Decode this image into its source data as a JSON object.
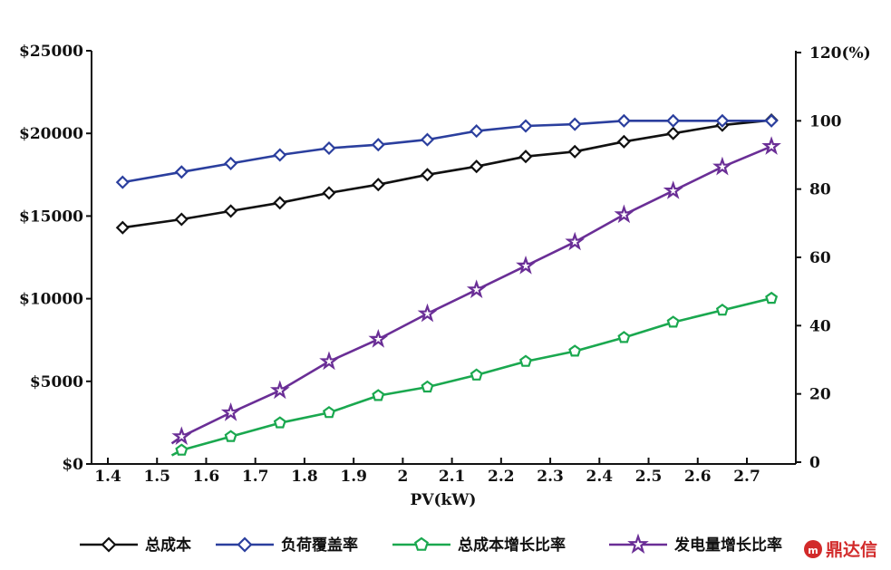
{
  "chart_data": {
    "type": "line",
    "title": "",
    "xlabel": "PV(kW)",
    "x_ticks": [
      "1.4",
      "1.5",
      "1.6",
      "1.7",
      "1.8",
      "1.9",
      "2",
      "2.1",
      "2.2",
      "2.3",
      "2.4",
      "2.5",
      "2.6",
      "2.7"
    ],
    "xlim": [
      1.4,
      2.78
    ],
    "y_left": {
      "ticks": [
        "$25000",
        "$20000",
        "$15000",
        "$10000",
        "$5000",
        "$0"
      ],
      "tick_values": [
        25000,
        20000,
        15000,
        10000,
        5000,
        0
      ],
      "ylim": [
        0,
        25000
      ]
    },
    "y_right": {
      "ticks": [
        "120(%)",
        "100",
        "80",
        "60",
        "40",
        "20",
        "0"
      ],
      "tick_values": [
        120,
        100,
        80,
        60,
        40,
        20,
        0
      ],
      "ylim": [
        0,
        120
      ]
    },
    "grid": false,
    "legend_position": "bottom",
    "series": [
      {
        "name": "总成本",
        "axis": "left",
        "color": "#111111",
        "marker": "diamond",
        "x": [
          1.43,
          1.55,
          1.65,
          1.75,
          1.85,
          1.95,
          2.05,
          2.15,
          2.25,
          2.35,
          2.45,
          2.55,
          2.65,
          2.75
        ],
        "values": [
          14300,
          14800,
          15300,
          15800,
          16400,
          16900,
          17500,
          18000,
          18600,
          18900,
          19500,
          20000,
          20500,
          20800
        ]
      },
      {
        "name": "负荷覆盖率",
        "axis": "right",
        "color": "#2b3f9e",
        "marker": "diamond",
        "x": [
          1.43,
          1.55,
          1.65,
          1.75,
          1.85,
          1.95,
          2.05,
          2.15,
          2.25,
          2.35,
          2.45,
          2.55,
          2.65,
          2.75
        ],
        "values": [
          82,
          85,
          87.5,
          90,
          92,
          93,
          94.5,
          97,
          98.5,
          99,
          100,
          100,
          100,
          100
        ]
      },
      {
        "name": "总成本增长比率",
        "axis": "right",
        "color": "#1aa84f",
        "marker": "pentagon",
        "x": [
          1.53,
          1.55,
          1.65,
          1.75,
          1.85,
          1.95,
          2.05,
          2.15,
          2.25,
          2.35,
          2.45,
          2.55,
          2.65,
          2.75
        ],
        "values": [
          2,
          3.5,
          7.5,
          11.5,
          14.5,
          19.5,
          22,
          25.5,
          29.5,
          32.5,
          36.5,
          41,
          44.5,
          48
        ]
      },
      {
        "name": "发电量增长比率",
        "axis": "right",
        "color": "#6a2e96",
        "marker": "star",
        "x": [
          1.53,
          1.55,
          1.65,
          1.75,
          1.85,
          1.95,
          2.05,
          2.15,
          2.25,
          2.35,
          2.45,
          2.55,
          2.65,
          2.75
        ],
        "values": [
          5.5,
          7.5,
          14.5,
          21,
          29.5,
          36,
          43.5,
          50.5,
          57.5,
          64.5,
          72.5,
          79.5,
          86.5,
          92.5
        ]
      }
    ]
  },
  "legend": {
    "items": [
      {
        "label": "总成本",
        "color": "#111111",
        "marker": "diamond"
      },
      {
        "label": "负荷覆盖率",
        "color": "#2b3f9e",
        "marker": "diamond"
      },
      {
        "label": "总成本增长比率",
        "color": "#1aa84f",
        "marker": "pentagon"
      },
      {
        "label": "发电量增长比率",
        "color": "#6a2e96",
        "marker": "star"
      }
    ]
  },
  "watermark": {
    "text": "鼎达信",
    "color": "#d22a2a"
  }
}
